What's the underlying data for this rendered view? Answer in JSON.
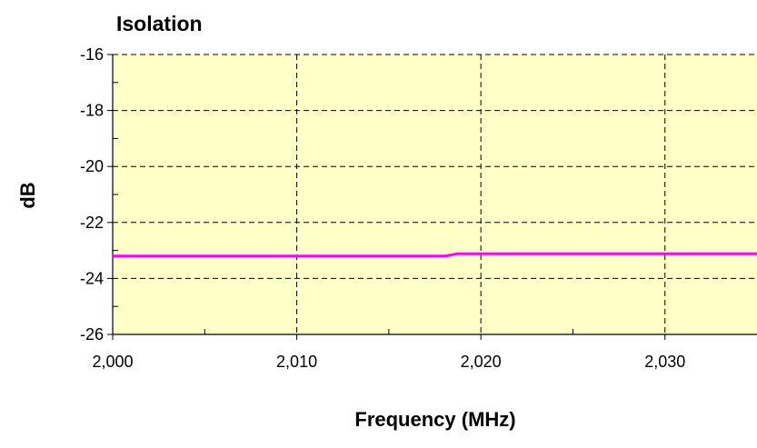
{
  "chart_data": {
    "type": "line",
    "title": "Isolation",
    "xlabel": "Frequency (MHz)",
    "ylabel": "dB",
    "xlim": [
      2000,
      2035
    ],
    "ylim": [
      -26,
      -16
    ],
    "x_ticks": [
      2000,
      2010,
      2020,
      2030
    ],
    "x_tick_labels": [
      "2,000",
      "2,010",
      "2,020",
      "2,030"
    ],
    "y_ticks": [
      -16,
      -18,
      -20,
      -22,
      -24,
      -26
    ],
    "y_tick_labels": [
      "-16",
      "-18",
      "-20",
      "-22",
      "-24",
      "-26"
    ],
    "grid": true,
    "legend": "none",
    "colors": {
      "plot_background": "#ffffc8",
      "series": "#ff00ff",
      "grid": "#000000"
    },
    "series": [
      {
        "x": [
          2000,
          2005,
          2010,
          2015,
          2018.1,
          2018.7,
          2020,
          2025,
          2030,
          2035
        ],
        "y": [
          -23.2,
          -23.2,
          -23.2,
          -23.2,
          -23.2,
          -23.12,
          -23.12,
          -23.12,
          -23.12,
          -23.12
        ]
      }
    ]
  }
}
